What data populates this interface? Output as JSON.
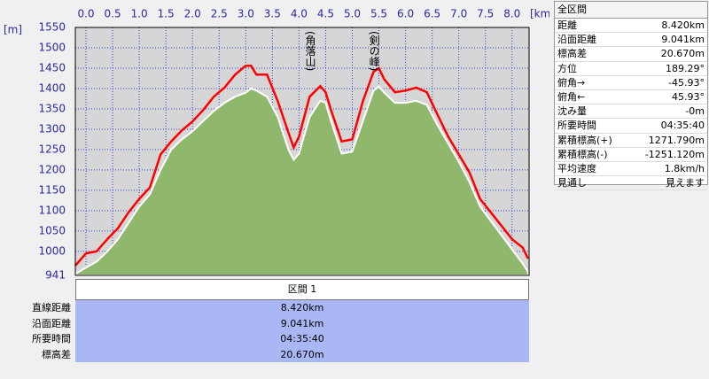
{
  "chart_data": {
    "type": "line",
    "x_label": "[km]",
    "y_label": "[m]",
    "x": [
      -0.2,
      0.0,
      0.2,
      0.4,
      0.6,
      0.8,
      1.0,
      1.2,
      1.4,
      1.6,
      1.8,
      2.0,
      2.2,
      2.4,
      2.6,
      2.8,
      3.0,
      3.1,
      3.2,
      3.4,
      3.6,
      3.8,
      3.9,
      4.0,
      4.2,
      4.4,
      4.5,
      4.6,
      4.8,
      5.0,
      5.2,
      5.4,
      5.5,
      5.6,
      5.8,
      6.0,
      6.2,
      6.4,
      6.6,
      6.8,
      7.0,
      7.2,
      7.4,
      7.6,
      7.8,
      8.0,
      8.2,
      8.3
    ],
    "series": [
      {
        "color": "#8fb86c",
        "fill": true,
        "values": [
          945,
          960,
          975,
          1000,
          1030,
          1070,
          1110,
          1140,
          1200,
          1250,
          1275,
          1295,
          1320,
          1345,
          1365,
          1380,
          1390,
          1400,
          1395,
          1380,
          1330,
          1250,
          1225,
          1240,
          1330,
          1370,
          1365,
          1320,
          1240,
          1245,
          1320,
          1395,
          1405,
          1390,
          1365,
          1365,
          1370,
          1360,
          1310,
          1265,
          1220,
          1170,
          1110,
          1075,
          1040,
          1005,
          970,
          950
        ]
      },
      {
        "color": "#ff0000",
        "fill": false,
        "values": [
          965,
          995,
          1000,
          1030,
          1057,
          1096,
          1129,
          1157,
          1238,
          1270,
          1297,
          1319,
          1347,
          1380,
          1402,
          1434,
          1456,
          1456,
          1434,
          1434,
          1369,
          1292,
          1255,
          1282,
          1380,
          1406,
          1391,
          1347,
          1270,
          1275,
          1369,
          1441,
          1450,
          1423,
          1391,
          1395,
          1402,
          1391,
          1336,
          1282,
          1238,
          1194,
          1129,
          1096,
          1063,
          1030,
          1009,
          982
        ]
      }
    ],
    "xlim": [
      -0.2,
      8.32
    ],
    "ylim": [
      941,
      1550
    ],
    "xticks": [
      {
        "value": 0,
        "label": "0.0"
      },
      0.5,
      {
        "value": 1,
        "label": "1.0"
      },
      1.5,
      {
        "value": 2,
        "label": "2.0"
      },
      2.5,
      {
        "value": 3,
        "label": "3.0"
      },
      3.5,
      {
        "value": 4,
        "label": "4.0"
      },
      4.5,
      {
        "value": 5,
        "label": "5.0"
      },
      5.5,
      {
        "value": 6,
        "label": "6.0"
      },
      6.5,
      {
        "value": 7,
        "label": "7.0"
      },
      7.5,
      {
        "value": 8,
        "label": "8.0"
      }
    ],
    "yticks": [
      941,
      1000,
      1050,
      1100,
      1150,
      1200,
      1250,
      1300,
      1350,
      1400,
      1450,
      1500,
      1550
    ],
    "grid": true,
    "annotations": [
      {
        "text": "(角落山)",
        "x": 4.21
      },
      {
        "text": "(剣の峰)",
        "x": 5.41
      }
    ]
  },
  "summary": {
    "title": "全区間",
    "rows": [
      [
        "距離",
        "8.420km"
      ],
      [
        "沿面距離",
        "9.041km"
      ],
      [
        "標高差",
        "20.670m"
      ],
      [
        "方位",
        "189.29°"
      ],
      [
        "俯角→",
        "-45.93°"
      ],
      [
        "俯角←",
        "45.93°"
      ],
      [
        "沈み量",
        "-0m"
      ],
      [
        "所要時間",
        "04:35:40"
      ],
      [
        "累積標高(+)",
        "1271.790m"
      ],
      [
        "累積標高(-)",
        "-1251.120m"
      ],
      [
        "平均速度",
        "1.8km/h"
      ],
      [
        "見通し",
        "見えます"
      ]
    ]
  },
  "sections": {
    "header": "区間 1",
    "rows": [
      [
        "直線距離",
        "8.420km"
      ],
      [
        "沿面距離",
        "9.041km"
      ],
      [
        "所要時間",
        "04:35:40"
      ],
      [
        "標高差",
        "20.670m"
      ]
    ]
  }
}
